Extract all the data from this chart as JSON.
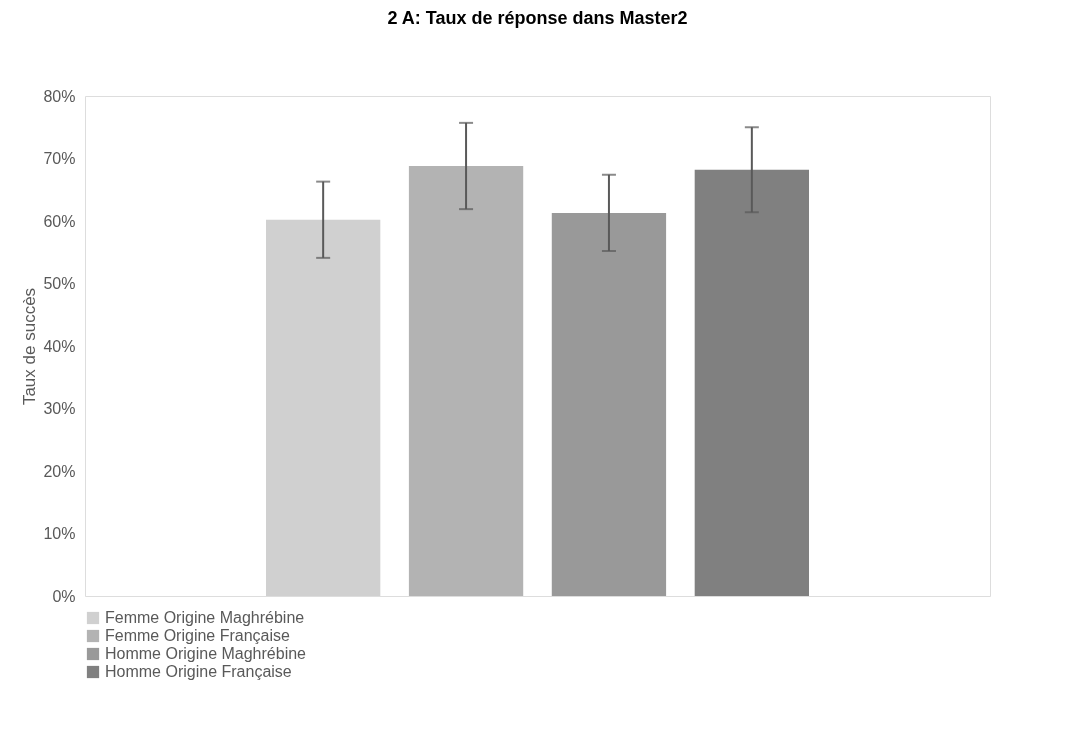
{
  "chart_data": {
    "type": "bar",
    "title": "2 A: Taux de réponse dans Master2",
    "ylabel": "Taux de succès",
    "categories": [
      null
    ],
    "series": [
      {
        "name": "Femme Origine Maghrébine",
        "color": "#d0d0d0",
        "values": [
          60.2
        ],
        "errors": [
          6.1
        ]
      },
      {
        "name": "Femme Origine Française",
        "color": "#b3b3b3",
        "values": [
          68.8
        ],
        "errors": [
          6.9
        ]
      },
      {
        "name": "Homme Origine Maghrébine",
        "color": "#999999",
        "values": [
          61.3
        ],
        "errors": [
          6.1
        ]
      },
      {
        "name": "Homme Origine Française",
        "color": "#808080",
        "values": [
          68.2
        ],
        "errors": [
          6.8
        ]
      }
    ],
    "ylim": [
      0,
      80
    ],
    "yticks": [
      {
        "value": 0,
        "label": "0%"
      },
      {
        "value": 10,
        "label": "10%"
      },
      {
        "value": 20,
        "label": "20%"
      },
      {
        "value": 30,
        "label": "30%"
      },
      {
        "value": 40,
        "label": "40%"
      },
      {
        "value": 50,
        "label": "50%"
      },
      {
        "value": 60,
        "label": "60%"
      },
      {
        "value": 70,
        "label": "70%"
      },
      {
        "value": 80,
        "label": "80%"
      }
    ],
    "grid": false,
    "legend": "bottom"
  }
}
